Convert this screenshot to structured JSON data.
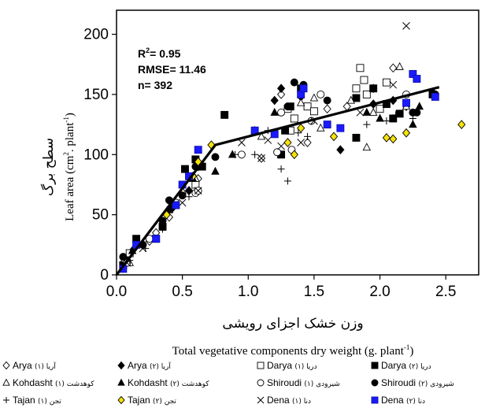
{
  "chart_data": {
    "type": "scatter",
    "xlabel_persian": "وزن خشک اجزای رویشی",
    "xlabel": "Total vegetative components dry weight  (g. plant",
    "xlabel_sup": "-1",
    "xlabel_end": ")",
    "ylabel_persian": "سطح برگ",
    "ylabel": "Leaf area  (cm",
    "ylabel_sup1": "2",
    "ylabel_mid": ". plant",
    "ylabel_sup2": "-1",
    "ylabel_end": ")",
    "xlim": [
      0,
      2.75
    ],
    "ylim": [
      0,
      220
    ],
    "xticks": [
      0.0,
      0.5,
      1.0,
      1.5,
      2.0,
      2.5
    ],
    "xtick_labels": [
      "0.0",
      "0.5",
      "1.0",
      "1.5",
      "2.0",
      "2.5"
    ],
    "yticks": [
      0,
      50,
      100,
      150,
      200
    ],
    "ytick_labels": [
      "0",
      "50",
      "100",
      "150",
      "200"
    ],
    "grid": false,
    "stats": {
      "r2_label": "R",
      "r2_sup": "2",
      "r2_value": "= 0.95",
      "rmse": "RMSE= 11.46",
      "n": "n= 392"
    },
    "fit_line": {
      "x": [
        0.0,
        0.75,
        2.45
      ],
      "y": [
        0,
        108,
        156
      ]
    },
    "legend_position": "bottom",
    "legend": [
      {
        "fa": "(۱) آریا",
        "en": "Arya",
        "symbol": "diamond-open",
        "color": "#000000"
      },
      {
        "fa": "(۲) آریا",
        "en": "Arya",
        "symbol": "diamond-filled",
        "color": "#000000"
      },
      {
        "fa": "(۱) دریا",
        "en": "Darya",
        "symbol": "square-open",
        "color": "#000000"
      },
      {
        "fa": "(۲) دریا",
        "en": "Darya",
        "symbol": "square-filled",
        "color": "#000000"
      },
      {
        "fa": "(۱) کوهدشت",
        "en": "Kohdasht",
        "symbol": "triangle-open",
        "color": "#000000"
      },
      {
        "fa": "(۲) کوهدشت",
        "en": "Kohdasht",
        "symbol": "triangle-filled",
        "color": "#000000"
      },
      {
        "fa": "(۱) شیرودی",
        "en": "Shiroudi",
        "symbol": "circle-open",
        "color": "#000000"
      },
      {
        "fa": "(۲) شیرودی",
        "en": "Shiroudi",
        "symbol": "circle-filled",
        "color": "#000000"
      },
      {
        "fa": "(۱) تجن",
        "en": "Tajan",
        "symbol": "plus",
        "color": "#000000"
      },
      {
        "fa": "(۲) تجن",
        "en": "Tajan",
        "symbol": "diamond-yellow",
        "color": "#f5e20a"
      },
      {
        "fa": "(۱) دنا",
        "en": "Dena",
        "symbol": "cross",
        "color": "#000000"
      },
      {
        "fa": "(۲) دنا",
        "en": "Dena",
        "symbol": "square-blue",
        "color": "#1a1aff"
      }
    ],
    "series": [
      {
        "symbol": "diamond-open",
        "points": [
          [
            0.05,
            10
          ],
          [
            0.12,
            20
          ],
          [
            0.25,
            28
          ],
          [
            0.4,
            48
          ],
          [
            0.55,
            70
          ],
          [
            0.62,
            80
          ],
          [
            1.1,
            97
          ],
          [
            1.45,
            110
          ],
          [
            1.6,
            138
          ],
          [
            1.95,
            155
          ],
          [
            2.1,
            172
          ],
          [
            1.25,
            150
          ],
          [
            1.75,
            140
          ],
          [
            0.3,
            35
          ]
        ]
      },
      {
        "symbol": "diamond-filled",
        "points": [
          [
            0.08,
            15
          ],
          [
            0.2,
            25
          ],
          [
            0.42,
            55
          ],
          [
            0.55,
            70
          ],
          [
            0.62,
            90
          ],
          [
            1.25,
            155
          ],
          [
            1.4,
            148
          ],
          [
            1.7,
            104
          ],
          [
            1.95,
            142
          ],
          [
            2.1,
            145
          ],
          [
            2.2,
            140
          ],
          [
            2.4,
            152
          ],
          [
            1.2,
            145
          ]
        ]
      },
      {
        "symbol": "square-open",
        "points": [
          [
            0.1,
            18
          ],
          [
            0.3,
            30
          ],
          [
            0.45,
            58
          ],
          [
            0.6,
            75
          ],
          [
            1.3,
            138
          ],
          [
            1.32,
            120
          ],
          [
            1.45,
            140
          ],
          [
            1.5,
            136
          ],
          [
            1.82,
            155
          ],
          [
            1.85,
            172
          ],
          [
            1.88,
            162
          ],
          [
            1.9,
            150
          ],
          [
            2.0,
            138
          ],
          [
            2.05,
            160
          ],
          [
            1.35,
            130
          ]
        ]
      },
      {
        "symbol": "square-filled",
        "points": [
          [
            0.05,
            8
          ],
          [
            0.15,
            30
          ],
          [
            0.35,
            40
          ],
          [
            0.52,
            88
          ],
          [
            0.6,
            96
          ],
          [
            0.65,
            90
          ],
          [
            0.82,
            133
          ],
          [
            1.25,
            100
          ],
          [
            1.28,
            120
          ],
          [
            1.32,
            140
          ],
          [
            1.4,
            155
          ],
          [
            1.82,
            147
          ],
          [
            1.82,
            114
          ],
          [
            1.95,
            155
          ],
          [
            2.05,
            142
          ],
          [
            2.1,
            130
          ],
          [
            2.15,
            134
          ],
          [
            2.4,
            150
          ]
        ]
      },
      {
        "symbol": "triangle-open",
        "points": [
          [
            0.1,
            10
          ],
          [
            0.3,
            30
          ],
          [
            0.5,
            70
          ],
          [
            0.6,
            80
          ],
          [
            1.4,
            143
          ],
          [
            1.5,
            147
          ],
          [
            1.55,
            122
          ],
          [
            1.78,
            145
          ],
          [
            1.9,
            106
          ],
          [
            1.95,
            135
          ],
          [
            2.15,
            173
          ],
          [
            2.2,
            140
          ],
          [
            1.1,
            115
          ]
        ]
      },
      {
        "symbol": "triangle-filled",
        "points": [
          [
            0.12,
            20
          ],
          [
            0.4,
            54
          ],
          [
            0.58,
            80
          ],
          [
            0.62,
            95
          ],
          [
            0.75,
            86
          ],
          [
            0.88,
            100
          ],
          [
            1.05,
            120
          ],
          [
            1.2,
            135
          ],
          [
            1.9,
            135
          ],
          [
            2.0,
            130
          ],
          [
            2.25,
            125
          ],
          [
            2.3,
            140
          ]
        ]
      },
      {
        "symbol": "circle-open",
        "points": [
          [
            0.08,
            10
          ],
          [
            0.25,
            30
          ],
          [
            0.45,
            60
          ],
          [
            0.6,
            68
          ],
          [
            0.62,
            70
          ],
          [
            0.95,
            100
          ],
          [
            1.22,
            102
          ],
          [
            1.33,
            104
          ],
          [
            1.48,
            128
          ],
          [
            1.55,
            150
          ],
          [
            2.2,
            150
          ],
          [
            1.25,
            135
          ]
        ]
      },
      {
        "symbol": "circle-filled",
        "points": [
          [
            0.05,
            15
          ],
          [
            0.2,
            25
          ],
          [
            0.35,
            45
          ],
          [
            0.4,
            62
          ],
          [
            0.5,
            66
          ],
          [
            0.6,
            90
          ],
          [
            0.75,
            98
          ],
          [
            1.35,
            160
          ],
          [
            1.42,
            158
          ],
          [
            1.6,
            145
          ],
          [
            2.25,
            135
          ],
          [
            2.28,
            135
          ],
          [
            2.42,
            150
          ],
          [
            1.3,
            140
          ]
        ]
      },
      {
        "symbol": "plus",
        "points": [
          [
            0.1,
            12
          ],
          [
            0.22,
            22
          ],
          [
            0.35,
            38
          ],
          [
            0.55,
            65
          ],
          [
            0.9,
            100
          ],
          [
            1.05,
            100
          ],
          [
            1.15,
            120
          ],
          [
            1.25,
            88
          ],
          [
            1.3,
            78
          ],
          [
            1.38,
            118
          ],
          [
            1.45,
            115
          ],
          [
            1.9,
            125
          ],
          [
            2.05,
            128
          ],
          [
            2.25,
            130
          ],
          [
            2.12,
            133
          ]
        ]
      },
      {
        "symbol": "diamond-yellow",
        "points": [
          [
            0.38,
            50
          ],
          [
            0.58,
            82
          ],
          [
            0.62,
            94
          ],
          [
            0.72,
            108
          ],
          [
            1.3,
            110
          ],
          [
            1.35,
            100
          ],
          [
            1.4,
            122
          ],
          [
            1.65,
            115
          ],
          [
            2.05,
            114
          ],
          [
            2.1,
            113
          ],
          [
            2.2,
            118
          ],
          [
            2.62,
            125
          ]
        ]
      },
      {
        "symbol": "cross",
        "points": [
          [
            0.08,
            10
          ],
          [
            0.2,
            22
          ],
          [
            0.5,
            60
          ],
          [
            0.62,
            70
          ],
          [
            0.95,
            110
          ],
          [
            1.1,
            97
          ],
          [
            1.15,
            112
          ],
          [
            1.2,
            118
          ],
          [
            1.25,
            107
          ],
          [
            1.4,
            110
          ],
          [
            1.5,
            128
          ],
          [
            1.85,
            135
          ],
          [
            2.1,
            158
          ],
          [
            2.2,
            207
          ]
        ]
      },
      {
        "symbol": "square-blue",
        "points": [
          [
            0.05,
            5
          ],
          [
            0.15,
            25
          ],
          [
            0.3,
            30
          ],
          [
            0.45,
            58
          ],
          [
            0.5,
            75
          ],
          [
            0.55,
            82
          ],
          [
            0.62,
            104
          ],
          [
            1.05,
            120
          ],
          [
            1.2,
            117
          ],
          [
            1.4,
            150
          ],
          [
            1.42,
            155
          ],
          [
            1.6,
            125
          ],
          [
            1.7,
            122
          ],
          [
            2.2,
            143
          ],
          [
            2.25,
            167
          ],
          [
            2.28,
            163
          ],
          [
            2.42,
            148
          ]
        ]
      }
    ]
  }
}
